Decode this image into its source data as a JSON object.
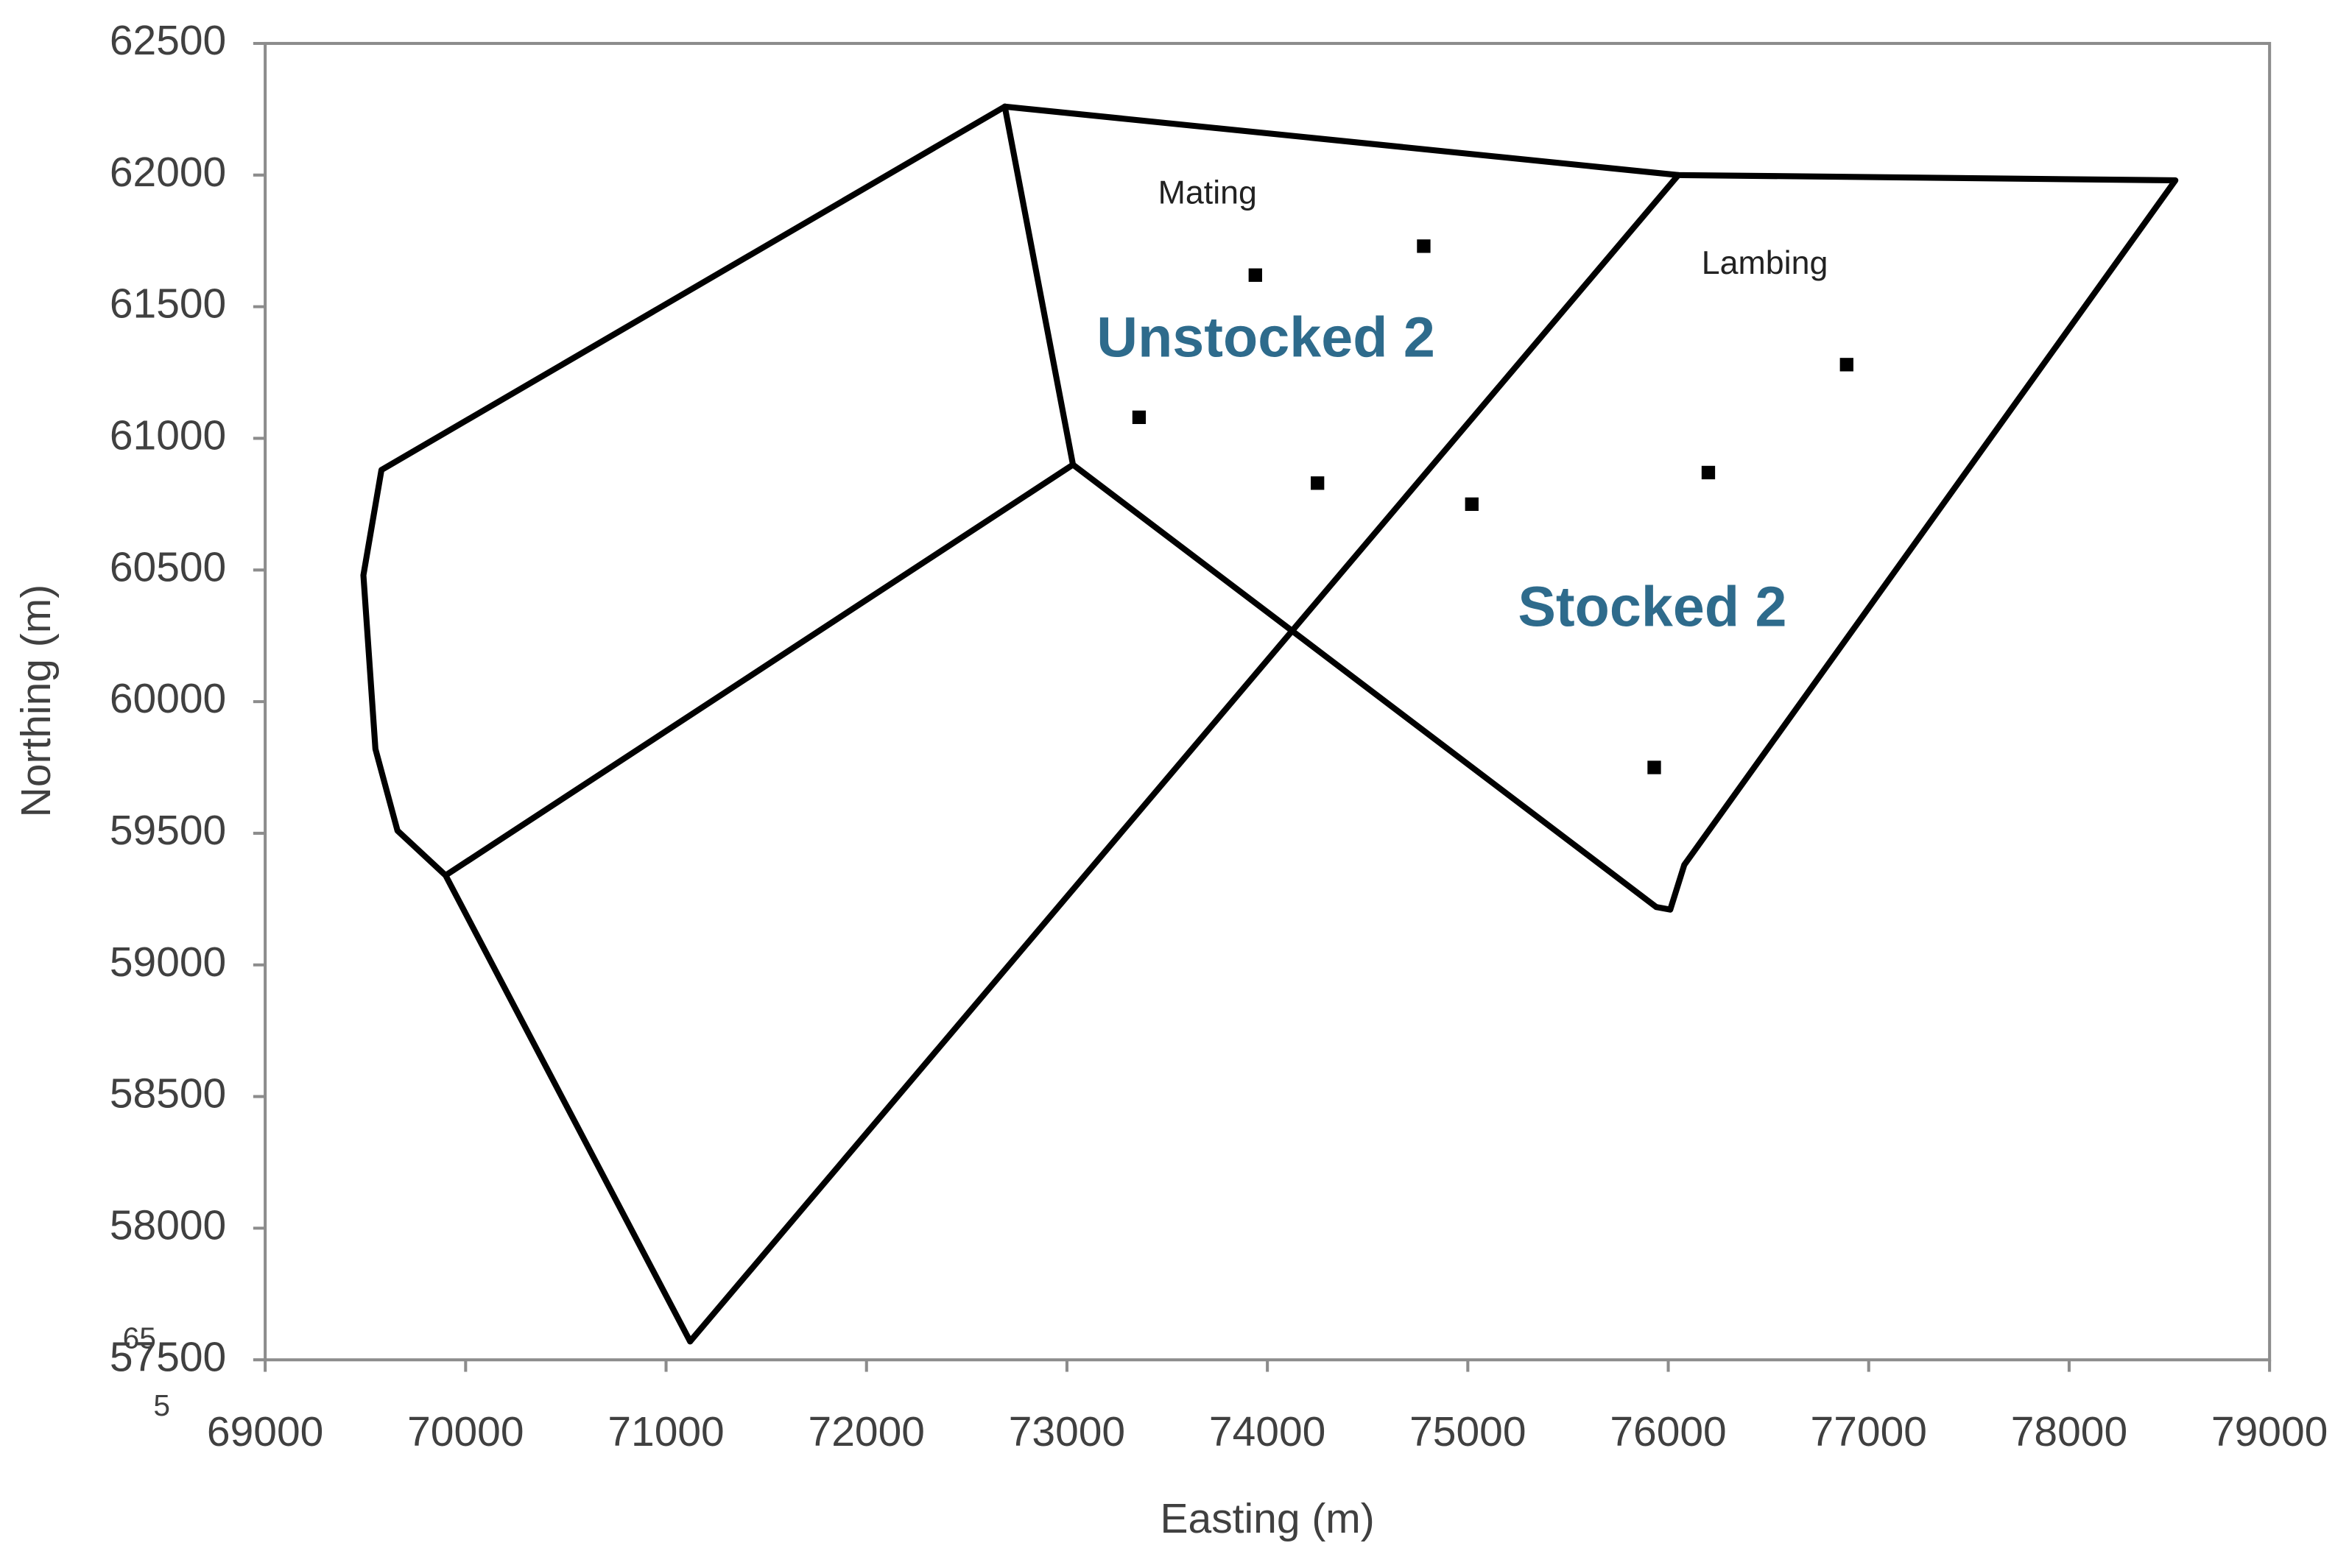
{
  "chart_data": {
    "type": "scatter",
    "x_label": "Easting (m)",
    "y_label": "Northing (m)",
    "xlim": [
      69000,
      79000
    ],
    "xticks": [
      69000,
      70000,
      71000,
      72000,
      73000,
      74000,
      75000,
      76000,
      77000,
      78000,
      79000
    ],
    "ylim": [
      57500,
      62500
    ],
    "yticks": [
      57500,
      58000,
      58500,
      59000,
      59500,
      60000,
      60500,
      61000,
      61500,
      62000,
      62500
    ],
    "line_color": "#000000",
    "point_color": "#000000",
    "boundaries": [
      {
        "x": [
          72690,
          76050,
          78530,
          76080,
          76010,
          75940
        ],
        "y": [
          62260,
          62000,
          61980,
          59380,
          59210,
          59220
        ]
      },
      {
        "x": [
          73030,
          75940
        ],
        "y": [
          60900,
          59220
        ]
      },
      {
        "x": [
          76050,
          71120
        ],
        "y": [
          62000,
          57570
        ]
      },
      {
        "x": [
          72690,
          73030
        ],
        "y": [
          62260,
          60900
        ]
      },
      {
        "x": [
          72690,
          69580,
          69490,
          69550,
          69660,
          69900,
          71120
        ],
        "y": [
          62260,
          60880,
          60480,
          59820,
          59510,
          59340,
          57570
        ]
      },
      {
        "x": [
          69900,
          73030
        ],
        "y": [
          59340,
          60900
        ]
      }
    ],
    "points": {
      "x": [
        73940,
        74780,
        73360,
        74250,
        75020,
        76890,
        76200,
        75930
      ],
      "y": [
        61620,
        61730,
        61080,
        60830,
        60750,
        61280,
        60870,
        59750
      ]
    },
    "annotations": [
      {
        "text": "Mating",
        "color": "#222222"
      },
      {
        "text": "Lambing",
        "color": "#222222"
      },
      {
        "text": "Unstocked 2",
        "color": "#2e6b8c"
      },
      {
        "text": "Stocked 2",
        "color": "#2e6b8c"
      },
      {
        "text": "65",
        "color": "#404040"
      },
      {
        "text": "5",
        "color": "#404040"
      }
    ]
  }
}
